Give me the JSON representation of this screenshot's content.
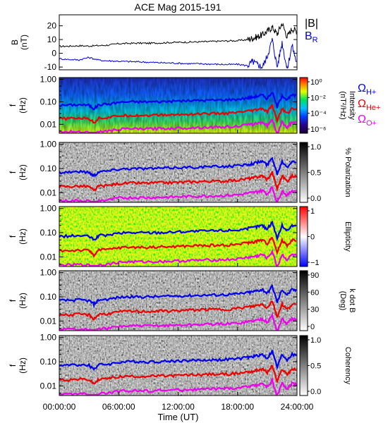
{
  "chart_data": [
    {
      "type": "line",
      "panel": "magnetic-field",
      "title": "ACE Mag 2015-191",
      "ylabel": "B",
      "yunit": "(nT)",
      "ylim": [
        -12,
        28
      ],
      "yticks": [
        "20",
        "10",
        "0",
        "-10"
      ],
      "ytick_values": [
        20,
        10,
        0,
        -10
      ],
      "legend_main": "|B|",
      "legend_sub_base": "B",
      "legend_sub_index": "R",
      "series": [
        {
          "name": "|B|",
          "color": "#000000",
          "x": [
            0,
            1,
            2,
            3,
            4,
            5,
            6,
            7,
            8,
            9,
            10,
            11,
            12,
            13,
            14,
            15,
            16,
            17,
            18,
            19,
            19.5,
            20,
            20.5,
            21,
            21.5,
            22,
            22.5,
            23,
            23.5,
            24
          ],
          "y": [
            5,
            5.2,
            5.5,
            5.3,
            5.6,
            6,
            7,
            7.2,
            7.4,
            7.3,
            7.5,
            7.8,
            8,
            8.1,
            8.3,
            8.5,
            8.8,
            9,
            9.2,
            10,
            11,
            12,
            13.5,
            16,
            19,
            14,
            22,
            12,
            18,
            16
          ]
        },
        {
          "name": "B_R",
          "color": "#0000cc",
          "x": [
            0,
            1,
            2,
            3,
            4,
            5,
            6,
            7,
            8,
            9,
            10,
            11,
            12,
            13,
            14,
            15,
            16,
            17,
            18,
            19,
            19.5,
            20,
            20.5,
            21,
            21.5,
            22,
            22.5,
            23,
            23.5,
            24
          ],
          "y": [
            -4,
            -4.5,
            -4.8,
            -3,
            -5,
            -5.5,
            -5.8,
            -6,
            -6.2,
            -6.5,
            -6.8,
            -7,
            -7.2,
            -7.5,
            -7.6,
            -7.8,
            -8,
            -8.2,
            -8,
            -9,
            -6,
            -8,
            -10,
            -2,
            10,
            -10,
            8,
            -12,
            6,
            -8
          ]
        }
      ]
    },
    {
      "type": "heatmap",
      "panel": "intensity",
      "ylabel": "f",
      "yunit": "(Hz)",
      "cbar_label": "Intensity",
      "cbar_unit": "(nT²/Hz)",
      "cbar_ticks": [
        "10⁰",
        "10⁻²",
        "10⁻⁴",
        "10⁻⁶"
      ],
      "cbar_scale": "log",
      "cbar_range": [
        1e-06,
        1
      ]
    },
    {
      "type": "heatmap",
      "panel": "polarization",
      "ylabel": "f",
      "yunit": "(Hz)",
      "cbar_label": "% Polarization",
      "cbar_ticks": [
        "1.0",
        "0.5",
        "0.0"
      ],
      "cbar_range": [
        0,
        1
      ]
    },
    {
      "type": "heatmap",
      "panel": "ellipticity",
      "ylabel": "f",
      "yunit": "(Hz)",
      "cbar_label": "Ellipticity",
      "cbar_ticks": [
        "1",
        "0",
        "−1"
      ],
      "cbar_range": [
        -1,
        1
      ]
    },
    {
      "type": "heatmap",
      "panel": "k-dot-b",
      "ylabel": "f",
      "yunit": "(Hz)",
      "cbar_label": "k dot B",
      "cbar_unit": "(Deg)",
      "cbar_ticks": [
        "90",
        "60",
        "30",
        "0"
      ],
      "cbar_range": [
        0,
        90
      ]
    },
    {
      "type": "heatmap",
      "panel": "coherency",
      "ylabel": "f",
      "yunit": "(Hz)",
      "cbar_label": "Coherency",
      "cbar_ticks": [
        "1.0",
        "0.5",
        "0.0"
      ],
      "cbar_range": [
        0,
        1
      ]
    }
  ],
  "freq_ticks": [
    "1.00",
    "0.10",
    "0.01"
  ],
  "freq_range": [
    0.004,
    1.2
  ],
  "freq_scale": "log",
  "time_axis": {
    "label": "Time (UT)",
    "ticks": [
      "00:00:00",
      "06:00:00",
      "12:00:00",
      "18:00:00",
      "24:00:00"
    ],
    "range_hours": [
      0,
      24
    ]
  },
  "gyrofrequency_lines": {
    "hours": [
      0,
      1,
      2,
      3,
      3.5,
      4,
      5,
      6,
      7,
      8,
      9,
      10,
      11,
      12,
      13,
      14,
      15,
      16,
      17,
      18,
      19,
      19.5,
      20,
      20.5,
      21,
      21.5,
      22,
      22.5,
      23,
      23.5,
      24
    ],
    "series": [
      {
        "name": "Ω_H+",
        "label_base": "Ω",
        "label_sub": "H+",
        "color": "#0000ee",
        "f": [
          0.07,
          0.072,
          0.075,
          0.07,
          0.05,
          0.075,
          0.08,
          0.095,
          0.1,
          0.1,
          0.1,
          0.102,
          0.105,
          0.11,
          0.112,
          0.115,
          0.118,
          0.12,
          0.125,
          0.13,
          0.15,
          0.16,
          0.18,
          0.2,
          0.14,
          0.28,
          0.06,
          0.2,
          0.12,
          0.2,
          0.18
        ]
      },
      {
        "name": "Ω_He+",
        "label_base": "Ω",
        "label_sub": "He+",
        "color": "#ee0000",
        "f": [
          0.018,
          0.018,
          0.019,
          0.018,
          0.012,
          0.019,
          0.02,
          0.024,
          0.025,
          0.025,
          0.025,
          0.026,
          0.026,
          0.027,
          0.028,
          0.029,
          0.03,
          0.03,
          0.031,
          0.033,
          0.038,
          0.04,
          0.045,
          0.05,
          0.035,
          0.07,
          0.015,
          0.05,
          0.03,
          0.05,
          0.045
        ]
      },
      {
        "name": "Ω_O+",
        "label_base": "Ω",
        "label_sub": "O+",
        "color": "#ee00ee",
        "f": [
          0.0045,
          0.0046,
          0.0048,
          0.0045,
          0.003,
          0.0048,
          0.005,
          0.006,
          0.0063,
          0.0063,
          0.0063,
          0.0065,
          0.0066,
          0.0068,
          0.007,
          0.0072,
          0.0074,
          0.0075,
          0.0078,
          0.0082,
          0.0095,
          0.01,
          0.011,
          0.0125,
          0.0088,
          0.017,
          0.0038,
          0.0125,
          0.0075,
          0.0125,
          0.011
        ]
      }
    ]
  },
  "colors": {
    "hplus": "#0000ee",
    "heplus": "#ee0000",
    "oplus": "#ee00ee",
    "br": "#0000cc"
  }
}
